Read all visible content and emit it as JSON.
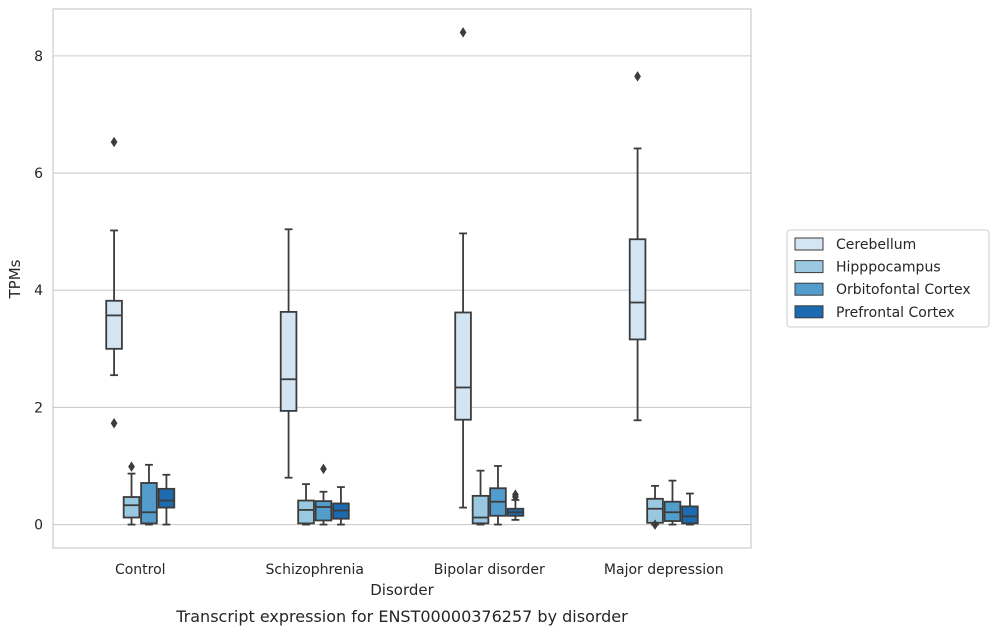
{
  "chart_data": {
    "type": "box",
    "caption": "Transcript expression for ENST00000376257 by disorder",
    "xlabel": "Disorder",
    "ylabel": "TPMs",
    "ylim": [
      -0.4,
      8.8
    ],
    "yticks": [
      0,
      2,
      4,
      6,
      8
    ],
    "grid": "horizontal",
    "legend_position": "right",
    "categories": [
      "Control",
      "Schizophrenia",
      "Bipolar disorder",
      "Major depression"
    ],
    "series": [
      {
        "name": "Cerebellum",
        "color": "#d3e4f3",
        "boxes": [
          {
            "whislo": 2.55,
            "q1": 3.0,
            "med": 3.57,
            "q3": 3.82,
            "whishi": 5.02,
            "fliers": [
              6.53,
              1.73
            ]
          },
          {
            "whislo": 0.8,
            "q1": 1.94,
            "med": 2.48,
            "q3": 3.63,
            "whishi": 5.04,
            "fliers": []
          },
          {
            "whislo": 0.29,
            "q1": 1.79,
            "med": 2.34,
            "q3": 3.62,
            "whishi": 4.97,
            "fliers": [
              8.4
            ]
          },
          {
            "whislo": 1.78,
            "q1": 3.16,
            "med": 3.79,
            "q3": 4.87,
            "whishi": 6.42,
            "fliers": [
              7.65
            ]
          }
        ]
      },
      {
        "name": "Hipppocampus",
        "color": "#9ac8e0",
        "boxes": [
          {
            "whislo": 0.0,
            "q1": 0.12,
            "med": 0.33,
            "q3": 0.47,
            "whishi": 0.87,
            "fliers": [
              0.99
            ]
          },
          {
            "whislo": 0.0,
            "q1": 0.02,
            "med": 0.25,
            "q3": 0.41,
            "whishi": 0.69,
            "fliers": []
          },
          {
            "whislo": 0.0,
            "q1": 0.02,
            "med": 0.12,
            "q3": 0.49,
            "whishi": 0.92,
            "fliers": []
          },
          {
            "whislo": 0.0,
            "q1": 0.03,
            "med": 0.27,
            "q3": 0.44,
            "whishi": 0.66,
            "fliers": [
              0.0
            ]
          }
        ]
      },
      {
        "name": "Orbitofontal Cortex",
        "color": "#529dcc",
        "boxes": [
          {
            "whislo": 0.0,
            "q1": 0.02,
            "med": 0.21,
            "q3": 0.71,
            "whishi": 1.02,
            "fliers": []
          },
          {
            "whislo": 0.0,
            "q1": 0.07,
            "med": 0.3,
            "q3": 0.4,
            "whishi": 0.56,
            "fliers": [
              0.95
            ]
          },
          {
            "whislo": 0.0,
            "q1": 0.15,
            "med": 0.39,
            "q3": 0.62,
            "whishi": 1.0,
            "fliers": []
          },
          {
            "whislo": 0.0,
            "q1": 0.06,
            "med": 0.21,
            "q3": 0.39,
            "whishi": 0.75,
            "fliers": []
          }
        ]
      },
      {
        "name": "Prefrontal Cortex",
        "color": "#1c6aaf",
        "boxes": [
          {
            "whislo": 0.0,
            "q1": 0.29,
            "med": 0.41,
            "q3": 0.61,
            "whishi": 0.85,
            "fliers": []
          },
          {
            "whislo": 0.0,
            "q1": 0.1,
            "med": 0.24,
            "q3": 0.36,
            "whishi": 0.64,
            "fliers": []
          },
          {
            "whislo": 0.08,
            "q1": 0.15,
            "med": 0.21,
            "q3": 0.27,
            "whishi": 0.42,
            "fliers": [
              0.51,
              0.47
            ]
          },
          {
            "whislo": 0.0,
            "q1": 0.02,
            "med": 0.14,
            "q3": 0.31,
            "whishi": 0.53,
            "fliers": []
          }
        ]
      }
    ]
  }
}
